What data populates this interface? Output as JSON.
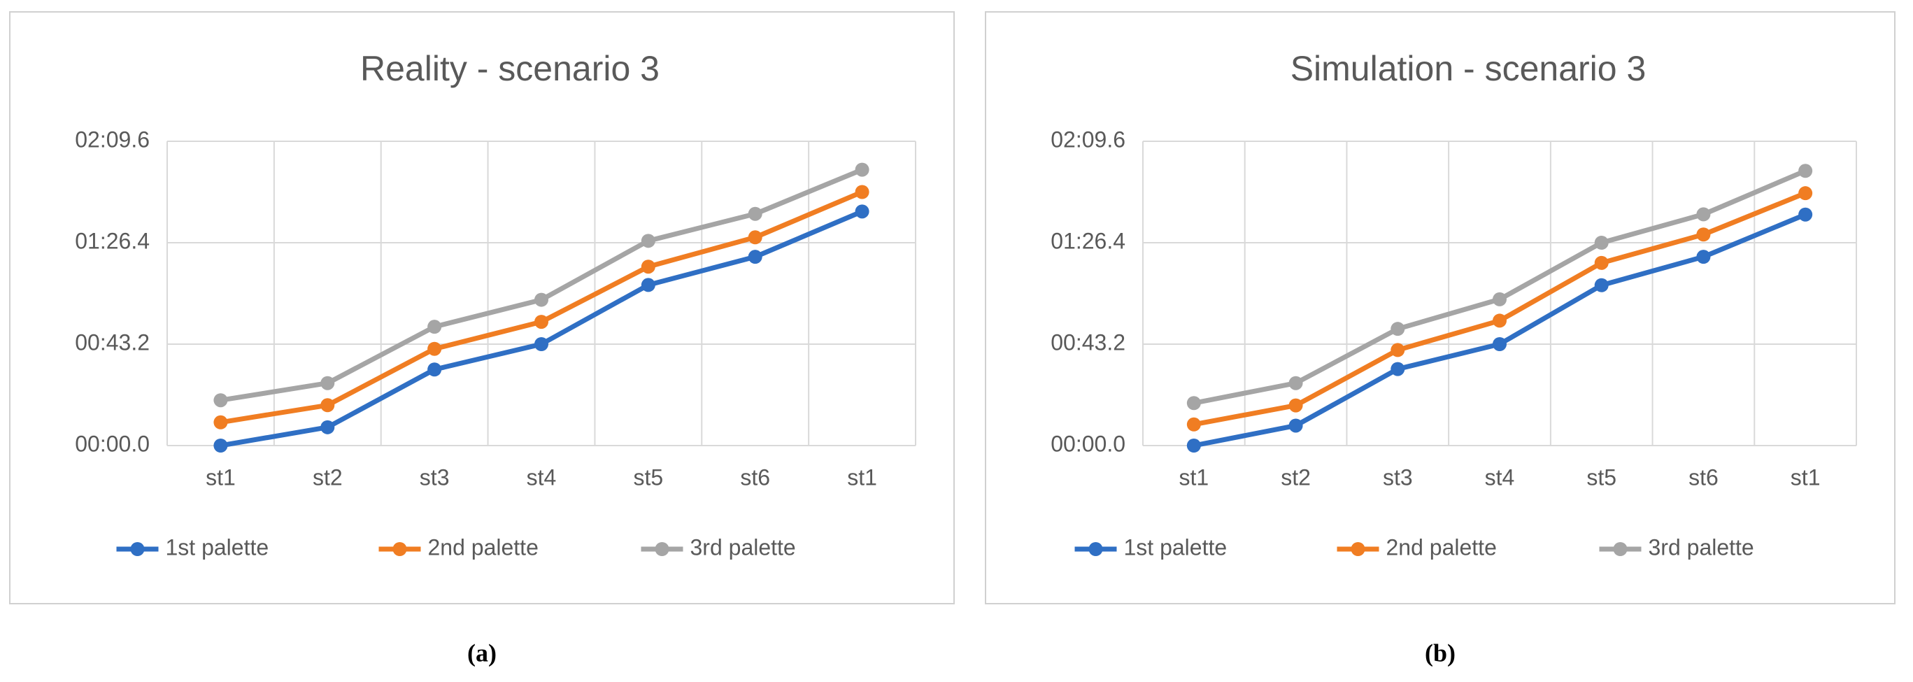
{
  "chart_data": [
    {
      "type": "line",
      "title": "Reality - scenario 3",
      "caption": "(a)",
      "categories": [
        "st1",
        "st2",
        "st3",
        "st4",
        "st5",
        "st6",
        "st1"
      ],
      "ylim": [
        0,
        129.6
      ],
      "yticks": [
        {
          "value": 0,
          "label": "00:00.0"
        },
        {
          "value": 43.2,
          "label": "00:43.2"
        },
        {
          "value": 86.4,
          "label": "01:26.4"
        },
        {
          "value": 129.6,
          "label": "02:09.6"
        }
      ],
      "grid": true,
      "legend": "bottom",
      "series": [
        {
          "name": "1st palette",
          "color": "#2f6fc4",
          "values": [
            0,
            7.8,
            32.4,
            43.2,
            68.4,
            80.4,
            99.7
          ]
        },
        {
          "name": "2nd palette",
          "color": "#f07d22",
          "values": [
            9.9,
            17.2,
            41.2,
            52.7,
            76.2,
            88.7,
            108
          ]
        },
        {
          "name": "3rd palette",
          "color": "#a5a5a5",
          "values": [
            19.3,
            26.6,
            50.6,
            62.1,
            87.2,
            98.7,
            117.5
          ]
        }
      ]
    },
    {
      "type": "line",
      "title": "Simulation - scenario 3",
      "caption": "(b)",
      "categories": [
        "st1",
        "st2",
        "st3",
        "st4",
        "st5",
        "st6",
        "st1"
      ],
      "ylim": [
        0,
        129.6
      ],
      "yticks": [
        {
          "value": 0,
          "label": "00:00.0"
        },
        {
          "value": 43.2,
          "label": "00:43.2"
        },
        {
          "value": 86.4,
          "label": "01:26.4"
        },
        {
          "value": 129.6,
          "label": "02:09.6"
        }
      ],
      "grid": true,
      "legend": "bottom",
      "series": [
        {
          "name": "1st palette",
          "color": "#2f6fc4",
          "values": [
            0,
            8.5,
            32.6,
            43.2,
            68.3,
            80.4,
            98.4
          ]
        },
        {
          "name": "2nd palette",
          "color": "#f07d22",
          "values": [
            9.0,
            17.1,
            40.7,
            53.2,
            77.8,
            89.9,
            107.5
          ]
        },
        {
          "name": "3rd palette",
          "color": "#a5a5a5",
          "values": [
            18.1,
            26.6,
            49.7,
            62.3,
            86.4,
            98.5,
            117
          ]
        }
      ]
    }
  ]
}
